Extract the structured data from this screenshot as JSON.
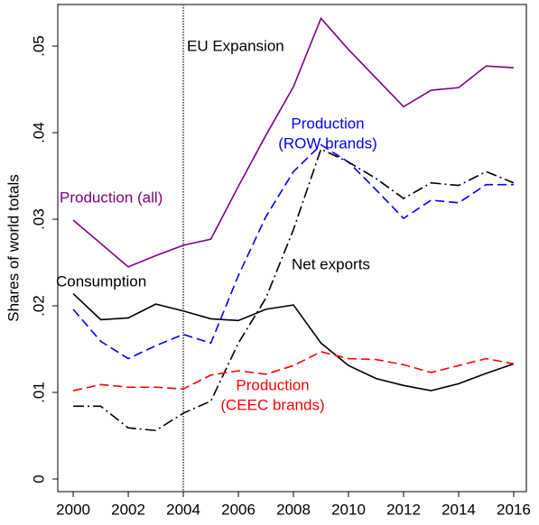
{
  "chart_data": {
    "type": "line",
    "ylabel": "Shares of world totals",
    "x": [
      2000,
      2001,
      2002,
      2003,
      2004,
      2005,
      2006,
      2007,
      2008,
      2009,
      2010,
      2011,
      2012,
      2013,
      2014,
      2015,
      2016
    ],
    "series": [
      {
        "name": "Production (all)",
        "color": "#800080",
        "dash": "solid",
        "values": [
          0.0299,
          0.0272,
          0.0245,
          0.0258,
          0.027,
          0.0277,
          0.0338,
          0.0397,
          0.0453,
          0.0532,
          0.0496,
          0.0463,
          0.043,
          0.0449,
          0.0452,
          0.0477,
          0.0475
        ]
      },
      {
        "name": "Production (ROW brands)",
        "color": "#0000ff",
        "dash": "dashed",
        "values": [
          0.0196,
          0.0159,
          0.0139,
          0.0154,
          0.0167,
          0.0157,
          0.0235,
          0.0303,
          0.0355,
          0.0386,
          0.0366,
          0.0334,
          0.0301,
          0.0322,
          0.0319,
          0.034,
          0.034
        ]
      },
      {
        "name": "Consumption",
        "color": "#000000",
        "dash": "solid",
        "values": [
          0.0214,
          0.0184,
          0.0186,
          0.0202,
          0.0194,
          0.0185,
          0.0183,
          0.0196,
          0.0201,
          0.0157,
          0.0131,
          0.0116,
          0.0108,
          0.0102,
          0.011,
          0.0122,
          0.0133
        ]
      },
      {
        "name": "Net exports",
        "color": "#000000",
        "dash": "dashdot",
        "values": [
          0.0084,
          0.0084,
          0.0059,
          0.0056,
          0.0076,
          0.009,
          0.0157,
          0.0209,
          0.0288,
          0.0381,
          0.0366,
          0.0347,
          0.0324,
          0.0342,
          0.0339,
          0.0355,
          0.0342
        ]
      },
      {
        "name": "Production (CEEC brands)",
        "color": "#ff0000",
        "dash": "dashed",
        "values": [
          0.0102,
          0.0109,
          0.0106,
          0.0106,
          0.0104,
          0.012,
          0.0125,
          0.0121,
          0.0131,
          0.0147,
          0.0139,
          0.0138,
          0.0132,
          0.0123,
          0.0131,
          0.0139,
          0.0133
        ]
      }
    ],
    "annotations": [
      {
        "lines": [
          "EU Expansion"
        ],
        "color": "#000000"
      },
      {
        "lines": [
          "Production (all)"
        ],
        "color": "#800080"
      },
      {
        "lines": [
          "Production",
          "(ROW brands)"
        ],
        "color": "#0000ff"
      },
      {
        "lines": [
          "Consumption"
        ],
        "color": "#000000"
      },
      {
        "lines": [
          "Net exports"
        ],
        "color": "#000000"
      },
      {
        "lines": [
          "Production",
          "(CEEC brands)"
        ],
        "color": "#ff0000"
      }
    ],
    "vline": 2004,
    "xlim": [
      1999.44,
      2016.46
    ],
    "xticks": [
      2000,
      2002,
      2004,
      2006,
      2008,
      2010,
      2012,
      2014,
      2016
    ],
    "ylim": [
      -0.00146,
      0.0548
    ],
    "yticks": [
      0,
      {
        "value": 0.01,
        "label": ".01"
      },
      {
        "value": 0.02,
        "label": ".02"
      },
      {
        "value": 0.03,
        "label": ".03"
      },
      {
        "value": 0.04,
        "label": ".04"
      },
      {
        "value": 0.05,
        "label": ".05"
      }
    ],
    "grid": false
  }
}
